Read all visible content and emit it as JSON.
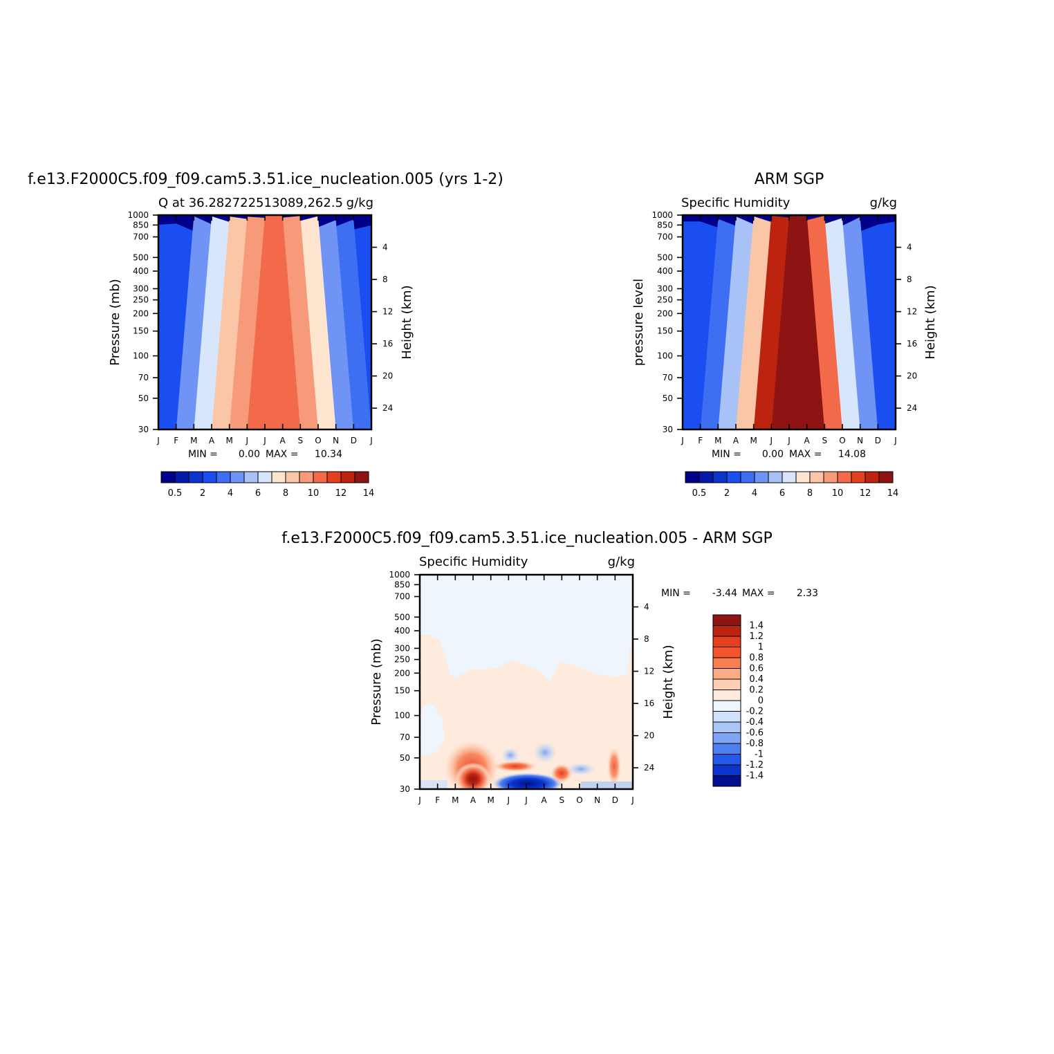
{
  "page": {
    "background": "#ffffff"
  },
  "chart_data": [
    {
      "type": "heatmap",
      "title": "f.e13.F2000C5.f09_f09.cam5.3.51.ice_nucleation.005 (yrs 1-2)",
      "subtitle_left": "Q at 36.282722513089,262.5",
      "subtitle_right": "g/kg",
      "ylabel": "Pressure (mb)",
      "ylabel_right": "Height (km)",
      "x_ticks": [
        "J",
        "F",
        "M",
        "A",
        "M",
        "J",
        "J",
        "A",
        "S",
        "O",
        "N",
        "D",
        "J"
      ],
      "y_ticks": [
        "30",
        "50",
        "70",
        "100",
        "150",
        "200",
        "250",
        "300",
        "400",
        "500",
        "700",
        "850",
        "1000"
      ],
      "y_ticks_right": [
        "24",
        "20",
        "16",
        "12",
        "8",
        "4"
      ],
      "stats": {
        "min_label": "MIN =",
        "min": "0.00",
        "max_label": "MAX =",
        "max": "10.34"
      },
      "colorbar": {
        "orientation": "horizontal",
        "tick_labels": [
          "0.5",
          "2",
          "4",
          "6",
          "8",
          "10",
          "12",
          "14"
        ],
        "colors": [
          "#00008a",
          "#0518a8",
          "#0a34cc",
          "#1a4ef0",
          "#3e6ff2",
          "#6f94f5",
          "#a8c2f8",
          "#d8e6fb",
          "#fde5cf",
          "#fbc6a8",
          "#f69a7a",
          "#f26a49",
          "#e3401f",
          "#bd2410",
          "#8e1414"
        ]
      },
      "profile": {
        "months": [
          "J",
          "F",
          "M",
          "A",
          "M",
          "J",
          "J",
          "A",
          "S",
          "O",
          "N",
          "D",
          "J"
        ],
        "top_height_km": [
          5.3,
          5.0,
          5.7,
          6.2,
          6.7,
          7.0,
          7.6,
          7.5,
          7.0,
          6.6,
          6.3,
          6.0,
          5.6
        ],
        "surface_q": [
          3.0,
          2.9,
          4.2,
          6.4,
          8.6,
          9.8,
          10.3,
          10.2,
          9.4,
          7.4,
          5.0,
          3.6,
          3.0
        ]
      }
    },
    {
      "type": "heatmap",
      "title": "ARM SGP",
      "subtitle_left": "Specific Humidity",
      "subtitle_right": "g/kg",
      "ylabel": "pressure level",
      "ylabel_right": "Height (km)",
      "x_ticks": [
        "J",
        "F",
        "M",
        "A",
        "M",
        "J",
        "J",
        "A",
        "S",
        "O",
        "N",
        "D",
        "J"
      ],
      "y_ticks": [
        "30",
        "50",
        "70",
        "100",
        "150",
        "200",
        "250",
        "300",
        "400",
        "500",
        "700",
        "850",
        "1000"
      ],
      "y_ticks_right": [
        "24",
        "20",
        "16",
        "12",
        "8",
        "4"
      ],
      "stats": {
        "min_label": "MIN =",
        "min": "0.00",
        "max_label": "MAX =",
        "max": "14.08"
      },
      "colorbar": {
        "orientation": "horizontal",
        "tick_labels": [
          "0.5",
          "2",
          "4",
          "6",
          "8",
          "10",
          "12",
          "14"
        ],
        "colors": [
          "#00008a",
          "#0518a8",
          "#0a34cc",
          "#1a4ef0",
          "#3e6ff2",
          "#6f94f5",
          "#a8c2f8",
          "#d8e6fb",
          "#fde5cf",
          "#fbc6a8",
          "#f69a7a",
          "#f26a49",
          "#e3401f",
          "#bd2410",
          "#8e1414"
        ]
      },
      "profile": {
        "months": [
          "J",
          "F",
          "M",
          "A",
          "M",
          "J",
          "J",
          "A",
          "S",
          "O",
          "N",
          "D",
          "J"
        ],
        "top_height_km": [
          5.0,
          5.0,
          5.2,
          5.4,
          5.9,
          6.3,
          6.8,
          6.7,
          6.0,
          6.2,
          5.6,
          5.2,
          5.0
        ],
        "surface_q": [
          2.6,
          2.6,
          3.6,
          5.4,
          8.6,
          12.4,
          14.0,
          13.6,
          10.4,
          7.0,
          4.4,
          3.0,
          2.6
        ]
      }
    },
    {
      "type": "heatmap",
      "title": "f.e13.F2000C5.f09_f09.cam5.3.51.ice_nucleation.005 - ARM SGP",
      "subtitle_left": "Specific Humidity",
      "subtitle_right": "g/kg",
      "ylabel": "Pressure (mb)",
      "ylabel_right": "Height (km)",
      "x_ticks": [
        "J",
        "F",
        "M",
        "A",
        "M",
        "J",
        "J",
        "A",
        "S",
        "O",
        "N",
        "D",
        "J"
      ],
      "y_ticks": [
        "30",
        "50",
        "70",
        "100",
        "150",
        "200",
        "250",
        "300",
        "400",
        "500",
        "700",
        "850",
        "1000"
      ],
      "y_ticks_right": [
        "24",
        "20",
        "16",
        "12",
        "8",
        "4"
      ],
      "stats": {
        "min_label": "MIN =",
        "min": "-3.44",
        "max_label": "MAX =",
        "max": "2.33"
      },
      "colorbar": {
        "orientation": "vertical",
        "tick_labels": [
          "1.4",
          "1.2",
          "1",
          "0.8",
          "0.6",
          "0.4",
          "0.2",
          "0",
          "-0.2",
          "-0.4",
          "-0.6",
          "-0.8",
          "-1",
          "-1.2",
          "-1.4"
        ],
        "colors": [
          "#8e1414",
          "#bd2410",
          "#e3401f",
          "#f5552e",
          "#f97f52",
          "#fbac85",
          "#fdcfb4",
          "#feebdd",
          "#eef5fd",
          "#cfe1fb",
          "#a9c6f8",
          "#7ea6f4",
          "#4f80f0",
          "#2458e8",
          "#0a34cc",
          "#00108e"
        ]
      }
    }
  ]
}
